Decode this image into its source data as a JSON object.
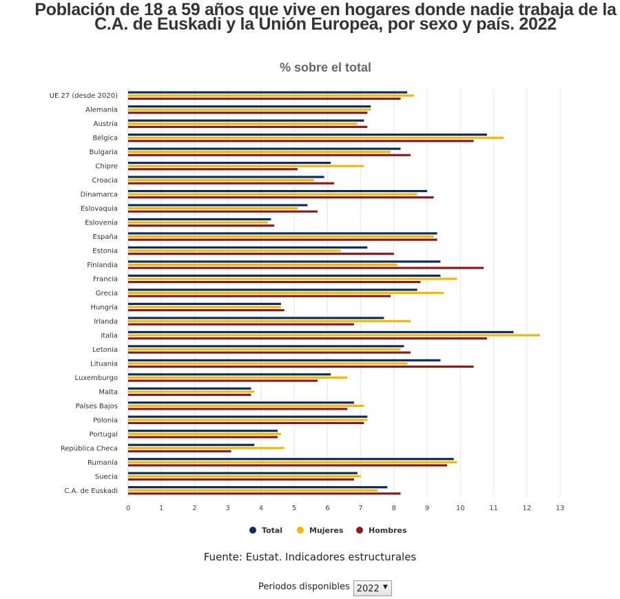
{
  "title": "Población de 18 a 59 años que vive en hogares donde nadie trabaja de la C.A. de Euskadi y la Unión Europea, por sexo y país. 2022",
  "subtitle": "% sobre el total",
  "chart_data": {
    "type": "bar",
    "orientation": "horizontal",
    "categories": [
      "UE 27 (desde 2020)",
      "Alemania",
      "Austria",
      "Bélgica",
      "Bulgaria",
      "Chipre",
      "Croacia",
      "Dinamarca",
      "Eslovaquia",
      "Eslovenia",
      "España",
      "Estonia",
      "Finlandia",
      "Francia",
      "Grecia",
      "Hungría",
      "Irlanda",
      "Italia",
      "Letonia",
      "Lituania",
      "Luxemburgo",
      "Malta",
      "Países Bajos",
      "Polonia",
      "Portugal",
      "República Checa",
      "Rumanía",
      "Suecia",
      "C.A. de Euskadi"
    ],
    "series": [
      {
        "name": "Total",
        "color": "#0a2d5e",
        "values": [
          8.4,
          7.3,
          7.1,
          10.8,
          8.2,
          6.1,
          5.9,
          9.0,
          5.4,
          4.3,
          9.3,
          7.2,
          9.4,
          9.4,
          8.7,
          4.6,
          7.7,
          11.6,
          8.3,
          9.4,
          6.1,
          3.7,
          6.8,
          7.2,
          4.5,
          3.8,
          9.8,
          6.9,
          7.8
        ]
      },
      {
        "name": "Mujeres",
        "color": "#f4b800",
        "values": [
          8.6,
          7.3,
          6.9,
          11.3,
          7.9,
          7.1,
          5.6,
          8.7,
          5.1,
          4.2,
          9.2,
          6.4,
          8.1,
          9.9,
          9.5,
          4.6,
          8.5,
          12.4,
          8.2,
          8.4,
          6.6,
          3.8,
          7.1,
          7.2,
          4.6,
          4.7,
          9.9,
          7.0,
          7.5
        ]
      },
      {
        "name": "Hombres",
        "color": "#8b1a1a",
        "values": [
          8.2,
          7.2,
          7.2,
          10.4,
          8.5,
          5.1,
          6.2,
          9.2,
          5.7,
          4.4,
          9.3,
          8.0,
          10.7,
          8.8,
          7.9,
          4.7,
          6.8,
          10.8,
          8.5,
          10.4,
          5.7,
          3.7,
          6.6,
          7.1,
          4.5,
          3.1,
          9.6,
          6.8,
          8.2
        ]
      }
    ],
    "xlim": [
      0,
      13
    ],
    "xticks": [
      0,
      1,
      2,
      3,
      4,
      5,
      6,
      7,
      8,
      9,
      10,
      11,
      12,
      13
    ],
    "grid": true,
    "legend_position": "bottom"
  },
  "source": "Fuente: Eustat. Indicadores estructurales",
  "period": {
    "label": "Periodos disponibles",
    "selected": "2022"
  }
}
